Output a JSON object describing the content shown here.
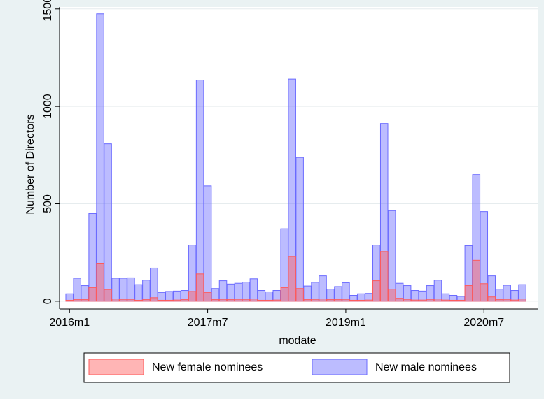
{
  "chart_data": {
    "type": "bar",
    "overlap": true,
    "xlabel": "modate",
    "ylabel": "Number of Directors",
    "x": [
      672,
      673,
      674,
      675,
      676,
      677,
      678,
      679,
      680,
      681,
      682,
      683,
      684,
      685,
      686,
      687,
      688,
      689,
      690,
      691,
      692,
      693,
      694,
      695,
      696,
      697,
      698,
      699,
      700,
      701,
      702,
      703,
      704,
      705,
      706,
      707,
      708,
      709,
      710,
      711,
      712,
      713,
      714,
      715,
      716,
      717,
      718,
      719,
      720,
      721,
      722,
      723,
      724,
      725,
      726,
      727,
      728,
      729,
      730,
      731
    ],
    "series": [
      {
        "name": "New female nominees",
        "color": "#ff5a5a",
        "values": [
          5,
          8,
          8,
          70,
          195,
          60,
          12,
          10,
          10,
          5,
          8,
          18,
          5,
          5,
          6,
          8,
          50,
          140,
          45,
          8,
          10,
          8,
          10,
          10,
          12,
          5,
          5,
          6,
          70,
          230,
          65,
          8,
          10,
          12,
          8,
          8,
          10,
          5,
          5,
          6,
          105,
          255,
          62,
          15,
          10,
          6,
          6,
          10,
          12,
          6,
          5,
          5,
          80,
          210,
          90,
          22,
          8,
          10,
          6,
          12
        ]
      },
      {
        "name": "New male nominees",
        "color": "#6a6aff",
        "values": [
          38,
          118,
          80,
          450,
          1475,
          808,
          118,
          118,
          120,
          85,
          108,
          170,
          45,
          50,
          52,
          55,
          288,
          1135,
          592,
          65,
          105,
          88,
          92,
          98,
          115,
          55,
          48,
          55,
          372,
          1140,
          738,
          78,
          97,
          130,
          62,
          75,
          95,
          30,
          38,
          40,
          288,
          912,
          465,
          92,
          80,
          55,
          52,
          80,
          108,
          38,
          30,
          25,
          285,
          650,
          460,
          130,
          62,
          82,
          55,
          85
        ]
      }
    ],
    "xlim": [
      670.7,
      733
    ],
    "xticks": [
      {
        "value": 672,
        "label": "2016m1"
      },
      {
        "value": 690,
        "label": "2017m7"
      },
      {
        "value": 708,
        "label": "2019m1"
      },
      {
        "value": 726,
        "label": "2020m7"
      }
    ],
    "ylim": [
      -40,
      1510
    ],
    "yticks": [
      0,
      500,
      1000,
      1500
    ],
    "grid": true,
    "legend": "bottom"
  }
}
